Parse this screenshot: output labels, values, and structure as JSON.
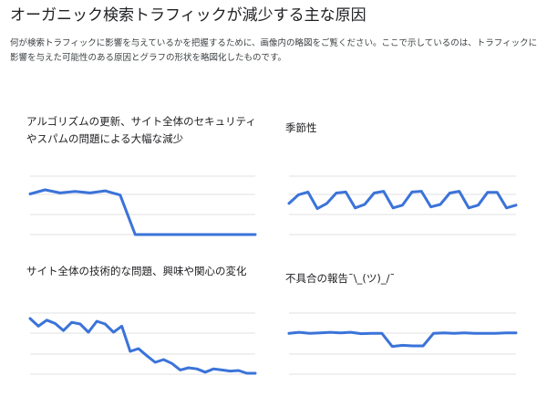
{
  "page": {
    "title": "オーガニック検索トラフィックが減少する主な原因",
    "description": "何が検索トラフィックに影響を与えているかを把握するために、画像内の略図をご覧ください。ここで示しているのは、トラフィックに影響を与えた可能性のある原因とグラフの形状を略図化したものです。"
  },
  "colors": {
    "series": "#3b73d9",
    "grid": "#e0e0e0"
  },
  "chart_data": [
    {
      "type": "line",
      "title": "アルゴリズムの更新、サイト全体のセキュリティやスパムの問題による大幅な減少",
      "grid": true,
      "ylim": [
        0,
        100
      ],
      "series": [
        {
          "values": [
            78,
            86,
            80,
            83,
            80,
            84,
            76,
            0,
            0,
            0,
            0,
            0,
            0,
            0,
            0,
            0
          ]
        }
      ]
    },
    {
      "type": "line",
      "title": "季節性",
      "grid": true,
      "ylim": [
        0,
        100
      ],
      "series": [
        {
          "values": [
            45,
            70,
            78,
            30,
            45,
            75,
            78,
            32,
            42,
            75,
            80,
            32,
            40,
            78,
            80,
            35,
            42,
            75,
            80,
            32,
            40,
            77,
            77,
            32,
            40
          ]
        }
      ]
    },
    {
      "type": "line",
      "title": "サイト全体の技術的な問題、興味や関心の変化",
      "grid": true,
      "ylim": [
        0,
        100
      ],
      "series": [
        {
          "values": [
            100,
            86,
            97,
            91,
            78,
            93,
            90,
            75,
            95,
            90,
            75,
            86,
            40,
            45,
            32,
            20,
            25,
            18,
            6,
            10,
            8,
            2,
            8,
            6,
            4,
            5,
            0,
            0
          ]
        }
      ]
    },
    {
      "type": "line",
      "title": "不具合の報告¯\\_(ツ)_/¯",
      "grid": true,
      "ylim": [
        0,
        100
      ],
      "series": [
        {
          "values": [
            86,
            90,
            86,
            88,
            90,
            88,
            90,
            85,
            86,
            86,
            40,
            44,
            42,
            42,
            86,
            88,
            86,
            88,
            86,
            86,
            86,
            88,
            88
          ]
        }
      ]
    }
  ]
}
